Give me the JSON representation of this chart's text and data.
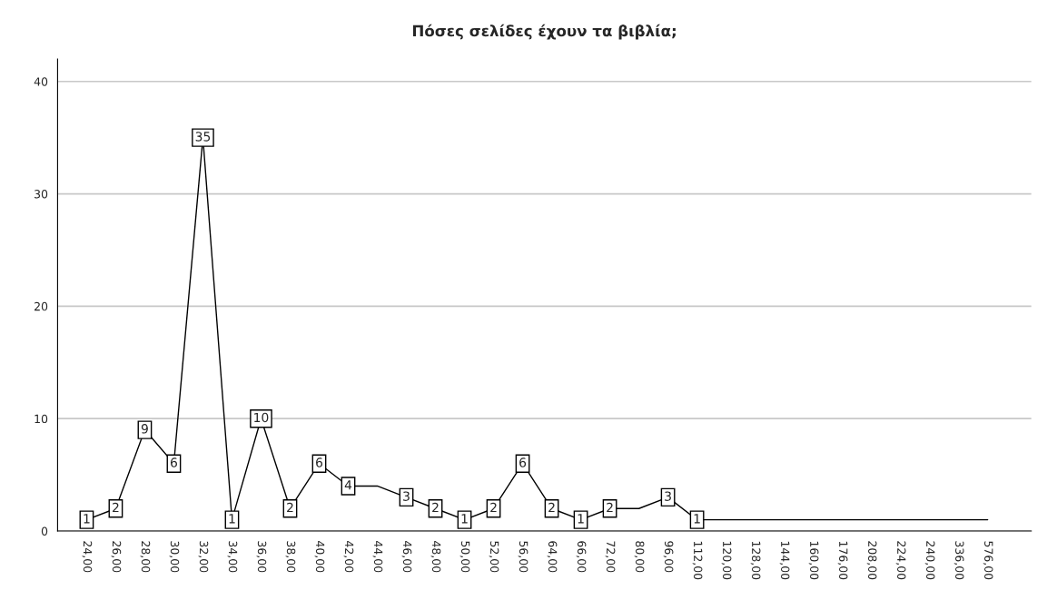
{
  "chart_data": {
    "type": "line",
    "title": "Πόσες σελίδες έχουν τα βιβλία;",
    "categories": [
      "24,00",
      "26,00",
      "28,00",
      "30,00",
      "32,00",
      "34,00",
      "36,00",
      "38,00",
      "40,00",
      "42,00",
      "44,00",
      "46,00",
      "48,00",
      "50,00",
      "52,00",
      "56,00",
      "64,00",
      "66,00",
      "72,00",
      "80,00",
      "96,00",
      "112,00",
      "120,00",
      "128,00",
      "144,00",
      "160,00",
      "176,00",
      "208,00",
      "224,00",
      "240,00",
      "336,00",
      "576,00"
    ],
    "values": [
      1,
      2,
      9,
      6,
      35,
      1,
      10,
      2,
      6,
      4,
      4,
      3,
      2,
      1,
      2,
      6,
      2,
      1,
      2,
      2,
      3,
      1,
      1,
      1,
      1,
      1,
      1,
      1,
      1,
      1,
      1,
      1
    ],
    "value_labels": [
      "1",
      "2",
      "9",
      "6",
      "35",
      "1",
      "10",
      "2",
      "6",
      "4",
      null,
      "3",
      "2",
      "1",
      "2",
      "6",
      "2",
      "1",
      "2",
      null,
      "3",
      "1",
      null,
      null,
      null,
      null,
      null,
      null,
      null,
      null,
      null,
      null
    ],
    "color": "#000000",
    "ylim": [
      0,
      42
    ],
    "yticks": [
      0,
      10,
      20,
      30,
      40
    ],
    "grid": "y"
  }
}
